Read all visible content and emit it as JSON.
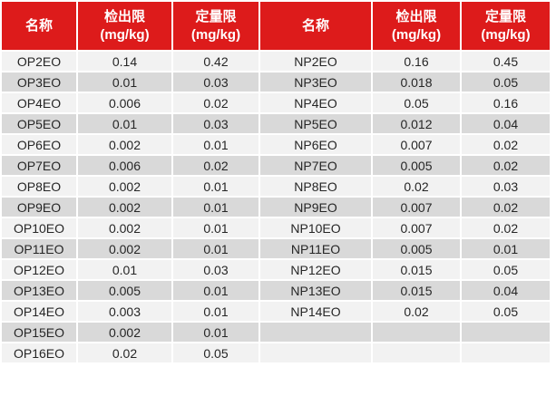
{
  "colors": {
    "header_bg": "#DD1B1B",
    "header_text": "#FFFFFF",
    "row_light": "#F2F2F2",
    "row_dark": "#D9D9D9",
    "body_text": "#262626",
    "grid": "#FFFFFF"
  },
  "table": {
    "headers": [
      {
        "label": "名称",
        "unit": ""
      },
      {
        "label": "检出限",
        "unit": "(mg/kg)"
      },
      {
        "label": "定量限",
        "unit": "(mg/kg)"
      },
      {
        "label": "名称",
        "unit": ""
      },
      {
        "label": "检出限",
        "unit": "(mg/kg)"
      },
      {
        "label": "定量限",
        "unit": "(mg/kg)"
      }
    ]
  },
  "chart_data": {
    "type": "table",
    "title": "",
    "columns": [
      "名称",
      "检出限 (mg/kg)",
      "定量限 (mg/kg)",
      "名称",
      "检出限 (mg/kg)",
      "定量限 (mg/kg)"
    ],
    "rows": [
      [
        "OP2EO",
        "0.14",
        "0.42",
        "NP2EO",
        "0.16",
        "0.45"
      ],
      [
        "OP3EO",
        "0.01",
        "0.03",
        "NP3EO",
        "0.018",
        "0.05"
      ],
      [
        "OP4EO",
        "0.006",
        "0.02",
        "NP4EO",
        "0.05",
        "0.16"
      ],
      [
        "OP5EO",
        "0.01",
        "0.03",
        "NP5EO",
        "0.012",
        "0.04"
      ],
      [
        "OP6EO",
        "0.002",
        "0.01",
        "NP6EO",
        "0.007",
        "0.02"
      ],
      [
        "OP7EO",
        "0.006",
        "0.02",
        "NP7EO",
        "0.005",
        "0.02"
      ],
      [
        "OP8EO",
        "0.002",
        "0.01",
        "NP8EO",
        "0.02",
        "0.03"
      ],
      [
        "OP9EO",
        "0.002",
        "0.01",
        "NP9EO",
        "0.007",
        "0.02"
      ],
      [
        "OP10EO",
        "0.002",
        "0.01",
        "NP10EO",
        "0.007",
        "0.02"
      ],
      [
        "OP11EO",
        "0.002",
        "0.01",
        "NP11EO",
        "0.005",
        "0.01"
      ],
      [
        "OP12EO",
        "0.01",
        "0.03",
        "NP12EO",
        "0.015",
        "0.05"
      ],
      [
        "OP13EO",
        "0.005",
        "0.01",
        "NP13EO",
        "0.015",
        "0.04"
      ],
      [
        "OP14EO",
        "0.003",
        "0.01",
        "NP14EO",
        "0.02",
        "0.05"
      ],
      [
        "OP15EO",
        "0.002",
        "0.01",
        "",
        "",
        ""
      ],
      [
        "OP16EO",
        "0.02",
        "0.05",
        "",
        "",
        ""
      ]
    ]
  }
}
